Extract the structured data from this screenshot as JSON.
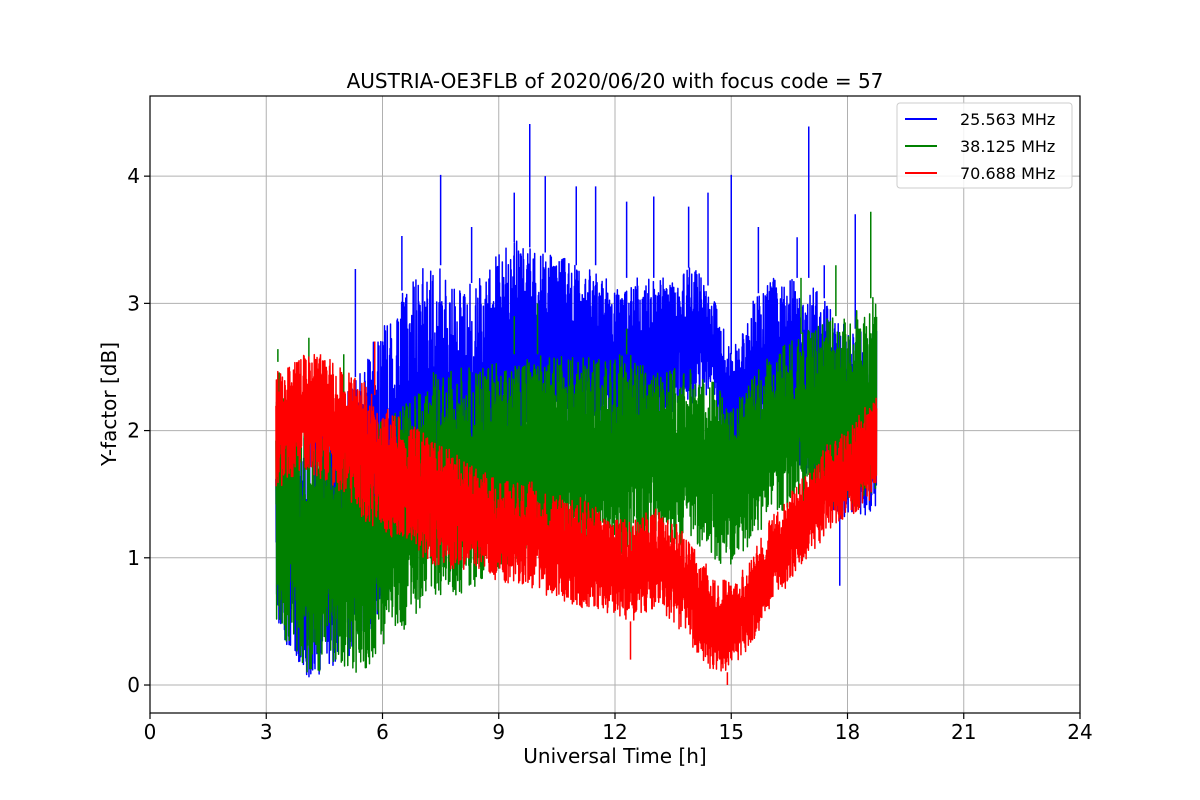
{
  "chart_data": {
    "type": "line",
    "title": "AUSTRIA-OE3FLB of 2020/06/20 with focus code = 57",
    "xlabel": "Universal Time [h]",
    "ylabel": "Y-factor [dB]",
    "xlim": [
      0,
      24
    ],
    "ylim": [
      -0.22,
      4.63
    ],
    "xticks": [
      "0",
      "3",
      "6",
      "9",
      "12",
      "15",
      "18",
      "21",
      "24"
    ],
    "yticks": [
      "0",
      "1",
      "2",
      "3",
      "4"
    ],
    "grid": true,
    "legend_position": "top-right",
    "series": [
      {
        "name": "25.563 MHz",
        "color": "#0000ff",
        "x": [
          3.25,
          3.5,
          4.0,
          4.5,
          5.0,
          5.5,
          6.0,
          6.5,
          7.0,
          7.5,
          8.0,
          8.5,
          9.0,
          9.5,
          10.0,
          10.5,
          11.0,
          11.5,
          12.0,
          12.5,
          13.0,
          13.5,
          14.0,
          14.5,
          15.0,
          15.5,
          16.0,
          16.5,
          17.0,
          17.5,
          18.0,
          18.5,
          18.75
        ],
        "low": [
          0.5,
          0.3,
          0.05,
          0.1,
          0.2,
          0.3,
          0.6,
          0.8,
          1.0,
          1.1,
          1.2,
          1.3,
          1.6,
          1.8,
          1.9,
          1.9,
          2.0,
          1.9,
          1.8,
          1.9,
          2.0,
          2.1,
          2.2,
          2.2,
          1.6,
          1.8,
          2.0,
          1.8,
          1.6,
          1.4,
          1.3,
          1.3,
          1.4
        ],
        "high": [
          2.2,
          2.0,
          2.0,
          2.1,
          2.3,
          2.5,
          2.9,
          3.1,
          3.3,
          3.3,
          3.1,
          3.2,
          3.4,
          3.5,
          3.4,
          3.4,
          3.3,
          3.3,
          3.2,
          3.2,
          3.2,
          3.2,
          3.3,
          3.1,
          2.6,
          3.0,
          3.2,
          3.2,
          3.2,
          3.0,
          2.8,
          2.8,
          2.9
        ],
        "spikes": [
          [
            5.3,
            3.27
          ],
          [
            6.5,
            3.53
          ],
          [
            7.5,
            4.01
          ],
          [
            8.3,
            3.6
          ],
          [
            9.4,
            3.87
          ],
          [
            9.8,
            4.41
          ],
          [
            10.2,
            4.0
          ],
          [
            11.0,
            3.92
          ],
          [
            11.5,
            3.92
          ],
          [
            12.3,
            3.8
          ],
          [
            13.0,
            3.84
          ],
          [
            13.9,
            3.76
          ],
          [
            14.4,
            3.87
          ],
          [
            15.0,
            4.01
          ],
          [
            15.7,
            3.6
          ],
          [
            16.7,
            3.52
          ],
          [
            17.0,
            4.39
          ],
          [
            17.4,
            3.3
          ],
          [
            17.8,
            0.78
          ],
          [
            18.2,
            3.7
          ]
        ]
      },
      {
        "name": "38.125 MHz",
        "color": "#008000",
        "x": [
          3.25,
          3.5,
          4.0,
          4.5,
          5.0,
          5.5,
          6.0,
          6.5,
          7.0,
          7.5,
          8.0,
          8.5,
          9.0,
          9.5,
          10.0,
          10.5,
          11.0,
          11.5,
          12.0,
          12.5,
          13.0,
          13.5,
          14.0,
          14.5,
          15.0,
          15.5,
          16.0,
          16.5,
          17.0,
          17.5,
          18.0,
          18.5,
          18.75
        ],
        "low": [
          0.5,
          0.3,
          0.1,
          0.1,
          0.1,
          0.1,
          0.3,
          0.4,
          0.6,
          0.7,
          0.7,
          0.8,
          0.9,
          1.0,
          1.0,
          1.0,
          1.1,
          1.0,
          1.0,
          1.0,
          1.1,
          1.1,
          1.1,
          1.0,
          0.9,
          1.1,
          1.3,
          1.4,
          1.4,
          1.4,
          1.4,
          1.4,
          1.5
        ],
        "high": [
          2.6,
          2.3,
          2.1,
          2.0,
          2.0,
          2.0,
          2.1,
          2.2,
          2.4,
          2.5,
          2.5,
          2.5,
          2.6,
          2.6,
          2.6,
          2.6,
          2.6,
          2.6,
          2.6,
          2.6,
          2.5,
          2.5,
          2.5,
          2.4,
          2.2,
          2.4,
          2.6,
          2.7,
          2.8,
          2.9,
          2.9,
          3.0,
          3.1
        ],
        "spikes": [
          [
            3.3,
            2.64
          ],
          [
            4.1,
            2.73
          ],
          [
            5.0,
            2.6
          ],
          [
            9.4,
            2.9
          ],
          [
            10.0,
            3.0
          ],
          [
            12.3,
            2.8
          ],
          [
            16.8,
            3.2
          ],
          [
            17.7,
            3.3
          ],
          [
            18.6,
            3.72
          ]
        ]
      },
      {
        "name": "70.688 MHz",
        "color": "#ff0000",
        "x": [
          3.25,
          3.5,
          4.0,
          4.5,
          5.0,
          5.5,
          6.0,
          6.5,
          7.0,
          7.5,
          8.0,
          8.5,
          9.0,
          9.5,
          10.0,
          10.5,
          11.0,
          11.5,
          12.0,
          12.5,
          13.0,
          13.5,
          14.0,
          14.5,
          15.0,
          15.5,
          16.0,
          16.5,
          17.0,
          17.5,
          18.0,
          18.5,
          18.75
        ],
        "low": [
          1.5,
          1.6,
          1.7,
          1.6,
          1.5,
          1.3,
          1.2,
          1.1,
          1.0,
          0.9,
          0.9,
          0.9,
          0.8,
          0.8,
          0.7,
          0.7,
          0.6,
          0.6,
          0.5,
          0.5,
          0.6,
          0.5,
          0.3,
          0.1,
          0.1,
          0.3,
          0.6,
          0.8,
          1.0,
          1.2,
          1.3,
          1.4,
          1.6
        ],
        "high": [
          2.5,
          2.5,
          2.6,
          2.6,
          2.5,
          2.4,
          2.2,
          2.1,
          2.0,
          1.9,
          1.8,
          1.7,
          1.6,
          1.6,
          1.6,
          1.5,
          1.5,
          1.4,
          1.3,
          1.3,
          1.4,
          1.3,
          1.1,
          0.9,
          0.8,
          1.0,
          1.3,
          1.5,
          1.7,
          1.9,
          2.0,
          2.2,
          2.3
        ],
        "spikes": [
          [
            4.4,
            2.6
          ],
          [
            5.8,
            2.7
          ],
          [
            12.4,
            0.2
          ],
          [
            14.9,
            0.0
          ]
        ]
      }
    ]
  }
}
